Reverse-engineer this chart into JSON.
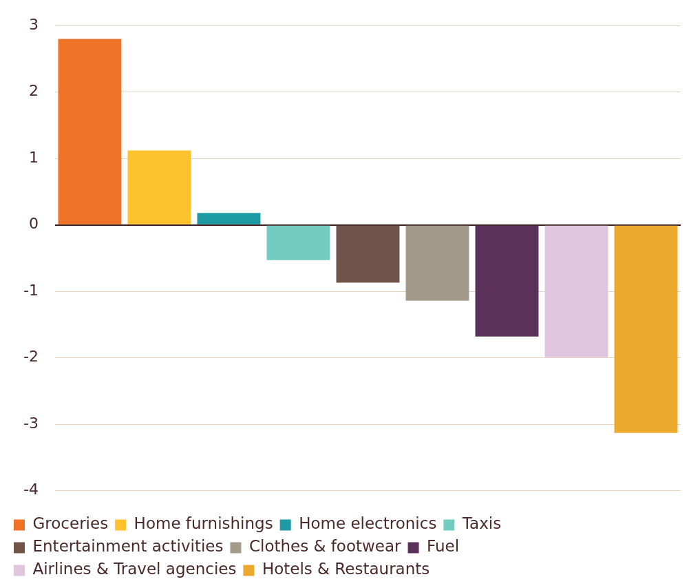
{
  "chart_data": {
    "type": "bar",
    "categories": [
      null,
      null,
      null,
      null,
      null,
      null,
      null,
      null,
      null
    ],
    "series": [
      {
        "name": "Groceries",
        "color": "#ee7326",
        "values": [
          2.8,
          null,
          null,
          null,
          null,
          null,
          null,
          null,
          null
        ]
      },
      {
        "name": "Home furnishings",
        "color": "#fdc22d",
        "values": [
          null,
          1.12,
          null,
          null,
          null,
          null,
          null,
          null,
          null
        ]
      },
      {
        "name": "Home electronics",
        "color": "#1e9aa5",
        "values": [
          null,
          null,
          0.18,
          null,
          null,
          null,
          null,
          null,
          null
        ]
      },
      {
        "name": "Taxis",
        "color": "#72cdc0",
        "values": [
          null,
          null,
          null,
          -0.53,
          null,
          null,
          null,
          null,
          null
        ]
      },
      {
        "name": "Entertainment activities",
        "color": "#705449",
        "values": [
          null,
          null,
          null,
          null,
          -0.87,
          null,
          null,
          null,
          null
        ]
      },
      {
        "name": "Clothes & footwear",
        "color": "#a39a8c",
        "values": [
          null,
          null,
          null,
          null,
          null,
          -1.14,
          null,
          null,
          null
        ]
      },
      {
        "name": "Fuel",
        "color": "#5a3159",
        "values": [
          null,
          null,
          null,
          null,
          null,
          null,
          -1.68,
          null,
          null
        ]
      },
      {
        "name": "Airlines & Travel agencies",
        "color": "#dfc5de",
        "values": [
          null,
          null,
          null,
          null,
          null,
          null,
          null,
          -1.99,
          null
        ]
      },
      {
        "name": "Hotels & Restaurants",
        "color": "#eda92e",
        "values": [
          null,
          null,
          null,
          null,
          null,
          null,
          null,
          null,
          -3.13
        ]
      }
    ],
    "ylim": [
      -4,
      3
    ],
    "yticks": [
      -4,
      -3,
      -2,
      -1,
      0,
      1,
      2,
      3
    ],
    "grid": "y",
    "legend": "bottom"
  }
}
